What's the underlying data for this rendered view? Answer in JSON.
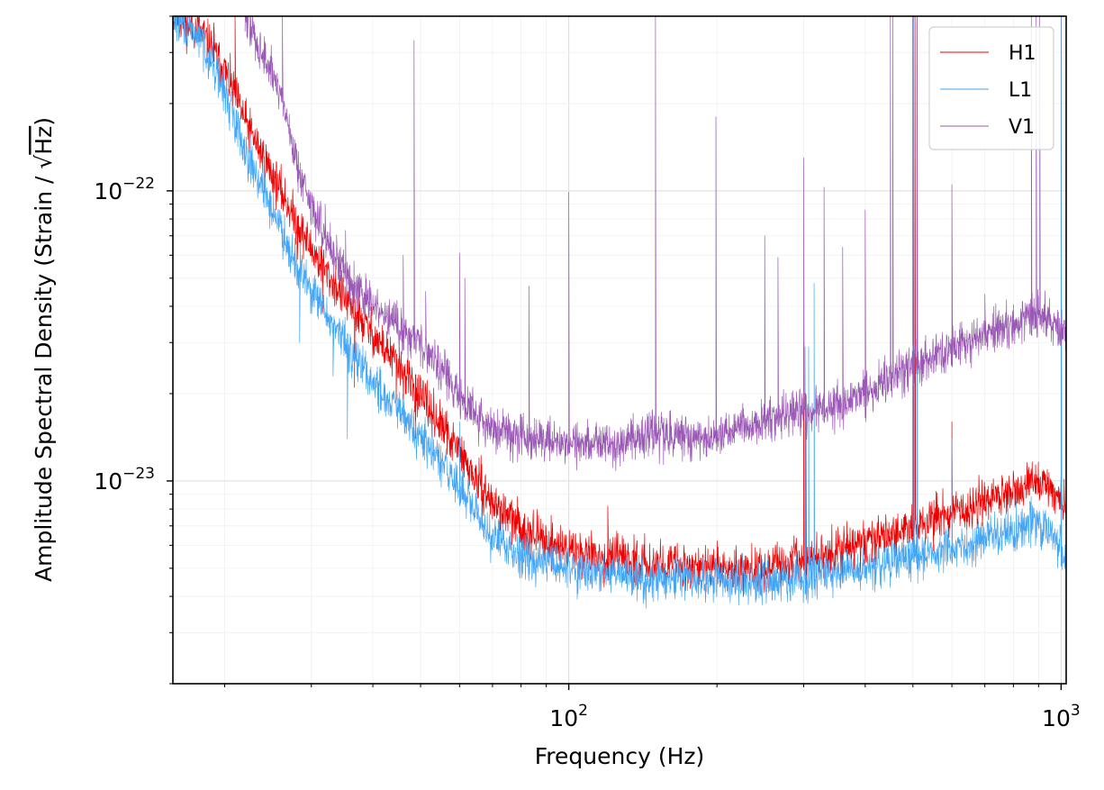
{
  "chart_data": {
    "type": "line",
    "xscale": "log",
    "yscale": "log",
    "xlim": [
      15.7,
      1024
    ],
    "ylim": [
      2e-24,
      4e-22
    ],
    "xlabel": "Frequency (Hz)",
    "ylabel": {
      "before_sqrt": "Amplitude Spectral Density (Strain / ",
      "radicand": "Hz",
      "after": ")"
    },
    "x_ticks": [
      {
        "value": 100,
        "base": "10",
        "exp": "2"
      },
      {
        "value": 1000,
        "base": "10",
        "exp": "3"
      }
    ],
    "y_ticks": [
      {
        "value": 1e-22,
        "base": "10",
        "exp": "−22"
      },
      {
        "value": 1e-23,
        "base": "10",
        "exp": "−23"
      }
    ],
    "grid": true,
    "legend_position": "top-right",
    "series": [
      {
        "name": "H1",
        "color": "#ee0000",
        "points": [
          [
            15.7,
            4e-22
          ],
          [
            18,
            3.5e-22
          ],
          [
            20,
            2.6e-22
          ],
          [
            22,
            1.75e-22
          ],
          [
            24,
            1.3e-22
          ],
          [
            26,
            1e-22
          ],
          [
            28,
            7.8e-23
          ],
          [
            30,
            6.3e-23
          ],
          [
            33,
            4.9e-23
          ],
          [
            36,
            4e-23
          ],
          [
            40,
            3.2e-23
          ],
          [
            45,
            2.5e-23
          ],
          [
            50,
            1.95e-23
          ],
          [
            55,
            1.55e-23
          ],
          [
            60,
            1.25e-23
          ],
          [
            65,
            1e-23
          ],
          [
            70,
            8.4e-24
          ],
          [
            80,
            6.9e-24
          ],
          [
            90,
            6.2e-24
          ],
          [
            100,
            5.8e-24
          ],
          [
            120,
            5.4e-24
          ],
          [
            150,
            5.2e-24
          ],
          [
            200,
            5e-24
          ],
          [
            250,
            5e-24
          ],
          [
            300,
            5.3e-24
          ],
          [
            350,
            5.7e-24
          ],
          [
            400,
            6.1e-24
          ],
          [
            450,
            6.6e-24
          ],
          [
            500,
            7e-24
          ],
          [
            600,
            7.7e-24
          ],
          [
            700,
            8.5e-24
          ],
          [
            800,
            9.3e-24
          ],
          [
            880,
            9.9e-24
          ],
          [
            950,
            9.4e-24
          ],
          [
            1000,
            8.6e-24
          ],
          [
            1024,
            8e-24
          ]
        ],
        "lines": [
          {
            "f": 17.6,
            "a": 4e-22
          },
          {
            "f": 19.0,
            "a": 3.8e-22
          },
          {
            "f": 21.0,
            "a": 4e-22
          },
          {
            "f": 28.1,
            "a": 5.8e-23
          },
          {
            "f": 31.6,
            "a": 3.8e-23
          },
          {
            "f": 36.7,
            "a": 2.1e-23
          },
          {
            "f": 40.9,
            "a": 3.2e-23
          },
          {
            "f": 44.6,
            "a": 1.9e-23
          },
          {
            "f": 48.8,
            "a": 1.4e-23
          },
          {
            "f": 60.0,
            "a": 1.2e-23
          },
          {
            "f": 120.0,
            "a": 8.2e-24
          },
          {
            "f": 300.0,
            "a": 3e-23
          },
          {
            "f": 303.0,
            "a": 2e-23
          },
          {
            "f": 500.0,
            "a": 4.2e-22
          },
          {
            "f": 505.0,
            "a": 4.2e-22
          },
          {
            "f": 600.0,
            "a": 1.6e-23
          },
          {
            "f": 1000.0,
            "a": 4.2e-22
          }
        ]
      },
      {
        "name": "L1",
        "color": "#42a5f5",
        "points": [
          [
            15.7,
            4e-22
          ],
          [
            17,
            3.6e-22
          ],
          [
            18,
            3.3e-22
          ],
          [
            20,
            2.2e-22
          ],
          [
            22,
            1.4e-22
          ],
          [
            24,
            1e-22
          ],
          [
            26,
            7.5e-23
          ],
          [
            28,
            5.6e-23
          ],
          [
            30,
            4.5e-23
          ],
          [
            33,
            3.5e-23
          ],
          [
            36,
            2.8e-23
          ],
          [
            40,
            2.2e-23
          ],
          [
            45,
            1.75e-23
          ],
          [
            50,
            1.4e-23
          ],
          [
            55,
            1.15e-23
          ],
          [
            60,
            9.5e-24
          ],
          [
            65,
            7.6e-24
          ],
          [
            70,
            6.4e-24
          ],
          [
            80,
            5.6e-24
          ],
          [
            90,
            5.3e-24
          ],
          [
            100,
            5e-24
          ],
          [
            120,
            4.8e-24
          ],
          [
            150,
            4.6e-24
          ],
          [
            200,
            4.5e-24
          ],
          [
            250,
            4.5e-24
          ],
          [
            300,
            4.6e-24
          ],
          [
            350,
            4.8e-24
          ],
          [
            400,
            5e-24
          ],
          [
            450,
            5.2e-24
          ],
          [
            500,
            5.4e-24
          ],
          [
            600,
            5.9e-24
          ],
          [
            700,
            6.3e-24
          ],
          [
            800,
            6.8e-24
          ],
          [
            880,
            7.3e-24
          ],
          [
            950,
            6.6e-24
          ],
          [
            1000,
            5.9e-24
          ],
          [
            1024,
            5.4e-24
          ]
        ],
        "lines": [
          {
            "f": 28.4,
            "a": 3e-23
          },
          {
            "f": 33.2,
            "a": 2.3e-23
          },
          {
            "f": 35.5,
            "a": 1.4e-23
          },
          {
            "f": 60.0,
            "a": 1.6e-23
          },
          {
            "f": 302.0,
            "a": 2.9e-23
          },
          {
            "f": 307.0,
            "a": 2.9e-23
          },
          {
            "f": 315.0,
            "a": 4.8e-23
          },
          {
            "f": 502.0,
            "a": 4.2e-22
          },
          {
            "f": 510.0,
            "a": 4.2e-22
          },
          {
            "f": 600.0,
            "a": 1.4e-23
          },
          {
            "f": 1000.0,
            "a": 4.2e-22
          }
        ]
      },
      {
        "name": "V1",
        "color": "#9b59b6",
        "points": [
          [
            22,
            4e-22
          ],
          [
            24,
            2.9e-22
          ],
          [
            26,
            2.2e-22
          ],
          [
            28,
            1.25e-22
          ],
          [
            30,
            8.8e-23
          ],
          [
            33,
            6.3e-23
          ],
          [
            36,
            4.9e-23
          ],
          [
            40,
            4e-23
          ],
          [
            45,
            3.4e-23
          ],
          [
            50,
            3e-23
          ],
          [
            55,
            2.5e-23
          ],
          [
            60,
            1.95e-23
          ],
          [
            65,
            1.65e-23
          ],
          [
            70,
            1.5e-23
          ],
          [
            80,
            1.45e-23
          ],
          [
            90,
            1.4e-23
          ],
          [
            100,
            1.35e-23
          ],
          [
            120,
            1.35e-23
          ],
          [
            150,
            1.45e-23
          ],
          [
            170,
            1.42e-23
          ],
          [
            200,
            1.4e-23
          ],
          [
            230,
            1.55e-23
          ],
          [
            260,
            1.65e-23
          ],
          [
            300,
            1.72e-23
          ],
          [
            350,
            1.8e-23
          ],
          [
            400,
            2e-23
          ],
          [
            450,
            2.25e-23
          ],
          [
            500,
            2.45e-23
          ],
          [
            550,
            2.7e-23
          ],
          [
            600,
            2.9e-23
          ],
          [
            650,
            3e-23
          ],
          [
            700,
            3.15e-23
          ],
          [
            800,
            3.4e-23
          ],
          [
            880,
            3.8e-23
          ],
          [
            950,
            3.6e-23
          ],
          [
            1000,
            3.3e-23
          ],
          [
            1024,
            3.2e-23
          ]
        ],
        "lines": [
          {
            "f": 26.2,
            "a": 4e-22
          },
          {
            "f": 28.5,
            "a": 1.25e-22
          },
          {
            "f": 32.0,
            "a": 9e-23
          },
          {
            "f": 35.2,
            "a": 7.3e-23
          },
          {
            "f": 38.5,
            "a": 4.4e-23
          },
          {
            "f": 46.1,
            "a": 6e-23
          },
          {
            "f": 48.5,
            "a": 3.3e-22
          },
          {
            "f": 51.2,
            "a": 4.5e-23
          },
          {
            "f": 60.0,
            "a": 6.1e-23
          },
          {
            "f": 61.5,
            "a": 5e-23
          },
          {
            "f": 83.0,
            "a": 4.7e-23
          },
          {
            "f": 100.0,
            "a": 9.9e-23
          },
          {
            "f": 150.0,
            "a": 4e-22
          },
          {
            "f": 199.0,
            "a": 1.8e-22
          },
          {
            "f": 250.0,
            "a": 7e-23
          },
          {
            "f": 266.0,
            "a": 5.9e-23
          },
          {
            "f": 300.0,
            "a": 1.3e-22
          },
          {
            "f": 330.0,
            "a": 1.03e-22
          },
          {
            "f": 360.0,
            "a": 6.4e-23
          },
          {
            "f": 400.0,
            "a": 8.6e-23
          },
          {
            "f": 450.0,
            "a": 4.2e-22
          },
          {
            "f": 455.0,
            "a": 4.2e-22
          },
          {
            "f": 510.0,
            "a": 4.2e-22
          },
          {
            "f": 600.0,
            "a": 1.05e-22
          },
          {
            "f": 700.0,
            "a": 4.4e-23
          },
          {
            "f": 870.0,
            "a": 4.2e-22
          },
          {
            "f": 890.0,
            "a": 4.2e-22
          },
          {
            "f": 905.0,
            "a": 4.2e-22
          }
        ]
      }
    ]
  }
}
